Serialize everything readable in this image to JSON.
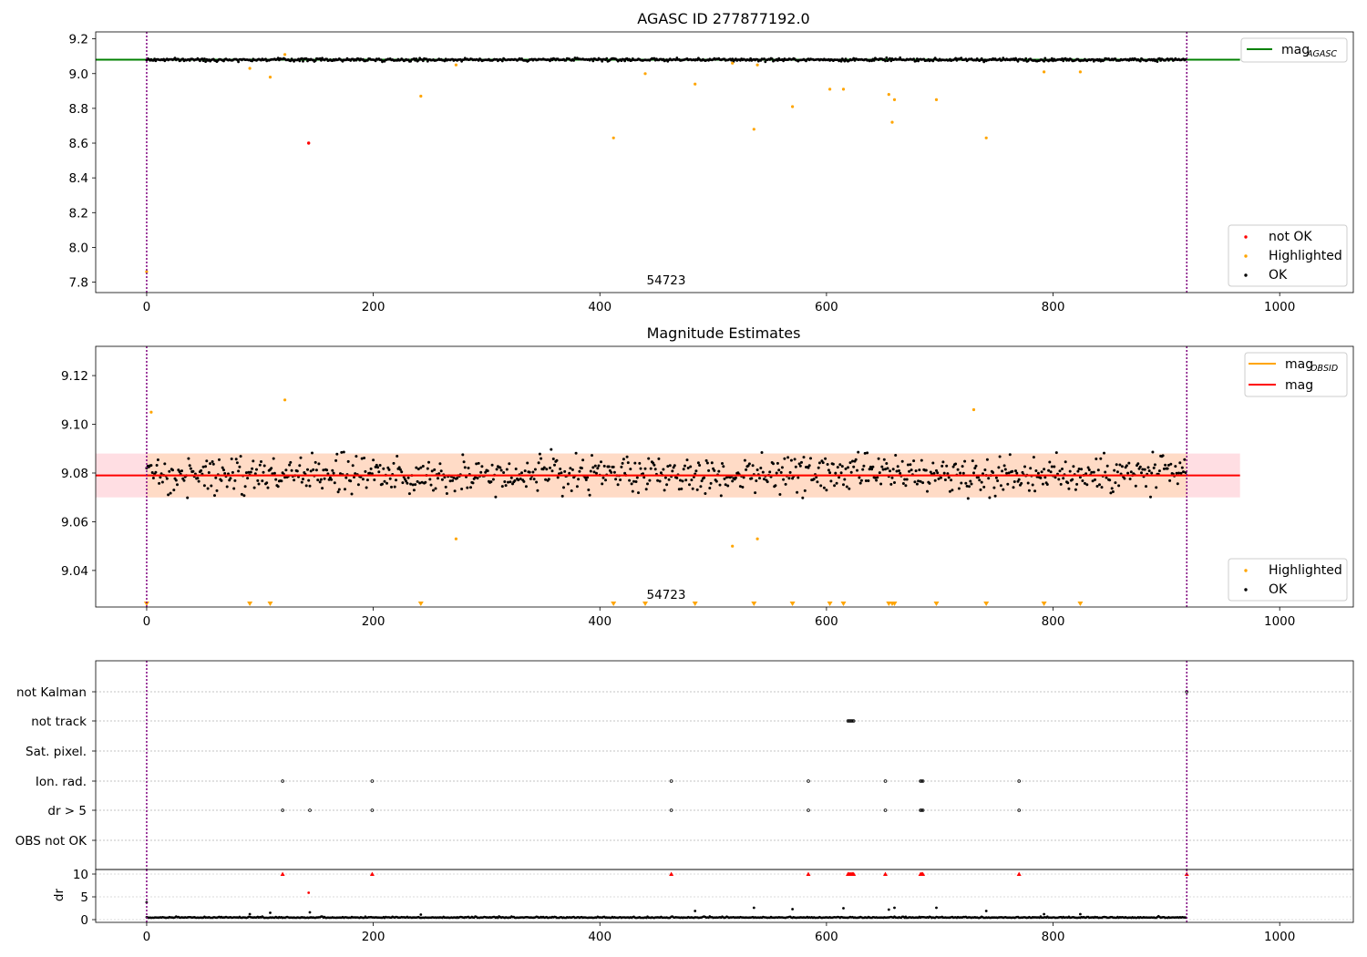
{
  "colors": {
    "ok": "#000000",
    "highlighted": "#ffa500",
    "not_ok": "#ff0000",
    "agasc_line": "#008000",
    "obsid_line": "#ffa500",
    "mag_line": "#ff0000",
    "obs_boundary": "#800080",
    "band_fill": "#ffb6c1",
    "band_fill_obs": "#ffdab9"
  },
  "chart_data": [
    {
      "type": "scatter",
      "title": "AGASC ID 277877192.0",
      "xlim": [
        -45,
        1065
      ],
      "ylim": [
        7.74,
        9.24
      ],
      "xticks": [
        "0",
        "200",
        "400",
        "600",
        "800",
        "1000"
      ],
      "yticks": [
        "7.8",
        "8.0",
        "8.2",
        "8.4",
        "8.6",
        "8.8",
        "9.0",
        "9.2"
      ],
      "ytick_values": [
        7.8,
        8.0,
        8.2,
        8.4,
        8.6,
        8.8,
        9.0,
        9.2
      ],
      "obs_boundaries": [
        0,
        918
      ],
      "obsid_annotation": {
        "label": "54723",
        "x": 459
      },
      "agasc_mag": 9.08,
      "ok_mean": 9.08,
      "ok_noise": 0.012,
      "n_points": 918,
      "highlighted_points": [
        [
          0,
          7.86
        ],
        [
          91,
          9.03
        ],
        [
          109,
          8.98
        ],
        [
          122,
          9.11
        ],
        [
          242,
          8.87
        ],
        [
          273,
          9.05
        ],
        [
          412,
          8.63
        ],
        [
          440,
          9.0
        ],
        [
          484,
          8.94
        ],
        [
          517,
          9.06
        ],
        [
          536,
          8.68
        ],
        [
          539,
          9.05
        ],
        [
          570,
          8.81
        ],
        [
          603,
          8.91
        ],
        [
          615,
          8.91
        ],
        [
          655,
          8.88
        ],
        [
          658,
          8.72
        ],
        [
          660,
          8.85
        ],
        [
          697,
          8.85
        ],
        [
          741,
          8.63
        ],
        [
          792,
          9.01
        ],
        [
          824,
          9.01
        ]
      ],
      "not_ok_points": [
        [
          143,
          8.6
        ]
      ],
      "legend_top": [
        {
          "label": "mag",
          "sub": "AGASC"
        }
      ],
      "legend_bottom": [
        {
          "label": "not OK"
        },
        {
          "label": "Highlighted"
        },
        {
          "label": "OK"
        }
      ]
    },
    {
      "type": "scatter",
      "title": "Magnitude Estimates",
      "xlim": [
        -45,
        1065
      ],
      "ylim": [
        9.025,
        9.132
      ],
      "xticks": [
        "0",
        "200",
        "400",
        "600",
        "800",
        "1000"
      ],
      "yticks": [
        "9.04",
        "9.06",
        "9.08",
        "9.10",
        "9.12"
      ],
      "ytick_values": [
        9.04,
        9.06,
        9.08,
        9.1,
        9.12
      ],
      "obs_boundaries": [
        0,
        918
      ],
      "obsid_annotation": {
        "label": "54723",
        "x": 459
      },
      "mag": 9.079,
      "mag_band": [
        9.07,
        9.088
      ],
      "band_xrange": [
        -45,
        965
      ],
      "obsid_mag": 9.079,
      "ok_mean": 9.0795,
      "ok_noise": 0.0095,
      "n_points": 918,
      "highlighted_points": [
        [
          4,
          9.105
        ],
        [
          122,
          9.11
        ],
        [
          273,
          9.053
        ],
        [
          517,
          9.05
        ],
        [
          539,
          9.053
        ],
        [
          730,
          9.106
        ]
      ],
      "highlighted_offscale_x": [
        0,
        91,
        109,
        242,
        412,
        440,
        484,
        536,
        570,
        603,
        615,
        655,
        658,
        660,
        697,
        741,
        792,
        824
      ],
      "legend_top": [
        {
          "label": "mag",
          "sub": "OBSID"
        },
        {
          "label": "mag"
        }
      ],
      "legend_bottom": [
        {
          "label": "Highlighted"
        },
        {
          "label": "OK"
        }
      ]
    },
    {
      "type": "scatter",
      "xlim": [
        -45,
        1065
      ],
      "categories": [
        "not Kalman",
        "not track",
        "Sat. pixel.",
        "Ion. rad.",
        "dr > 5",
        "OBS not OK"
      ],
      "flag_points": {
        "not track": [
          619,
          620,
          621,
          622,
          623,
          624
        ],
        "Ion. rad.": [
          120,
          199,
          463,
          584,
          652,
          683,
          684,
          685,
          770
        ],
        "dr > 5": [
          120,
          144,
          199,
          463,
          584,
          652,
          683,
          684,
          685,
          770
        ],
        "not Kalman": [
          918
        ]
      },
      "obs_boundaries": [
        0,
        918
      ]
    },
    {
      "type": "scatter",
      "ylabel": "dr",
      "xlim": [
        -45,
        1065
      ],
      "ylim": [
        -0.6,
        11
      ],
      "xticks": [
        "0",
        "200",
        "400",
        "600",
        "800",
        "1000"
      ],
      "yticks": [
        "0",
        "5",
        "10"
      ],
      "ytick_values": [
        0,
        5,
        10
      ],
      "obs_boundaries": [
        0,
        918
      ],
      "dr_base": 0.4,
      "n_points": 918,
      "dr_outliers": [
        [
          0,
          3.8
        ],
        [
          91,
          1.2
        ],
        [
          109,
          1.5
        ],
        [
          143,
          5.9
        ],
        [
          144,
          1.6
        ],
        [
          242,
          1.1
        ],
        [
          484,
          1.9
        ],
        [
          536,
          2.6
        ],
        [
          570,
          2.3
        ],
        [
          615,
          2.5
        ],
        [
          655,
          2.2
        ],
        [
          660,
          2.6
        ],
        [
          697,
          2.6
        ],
        [
          741,
          1.9
        ],
        [
          792,
          1.2
        ],
        [
          824,
          1.2
        ]
      ],
      "clipped_x": [
        120,
        199,
        463,
        584,
        619,
        620,
        621,
        622,
        623,
        624,
        652,
        683,
        684,
        685,
        770,
        918
      ]
    }
  ]
}
